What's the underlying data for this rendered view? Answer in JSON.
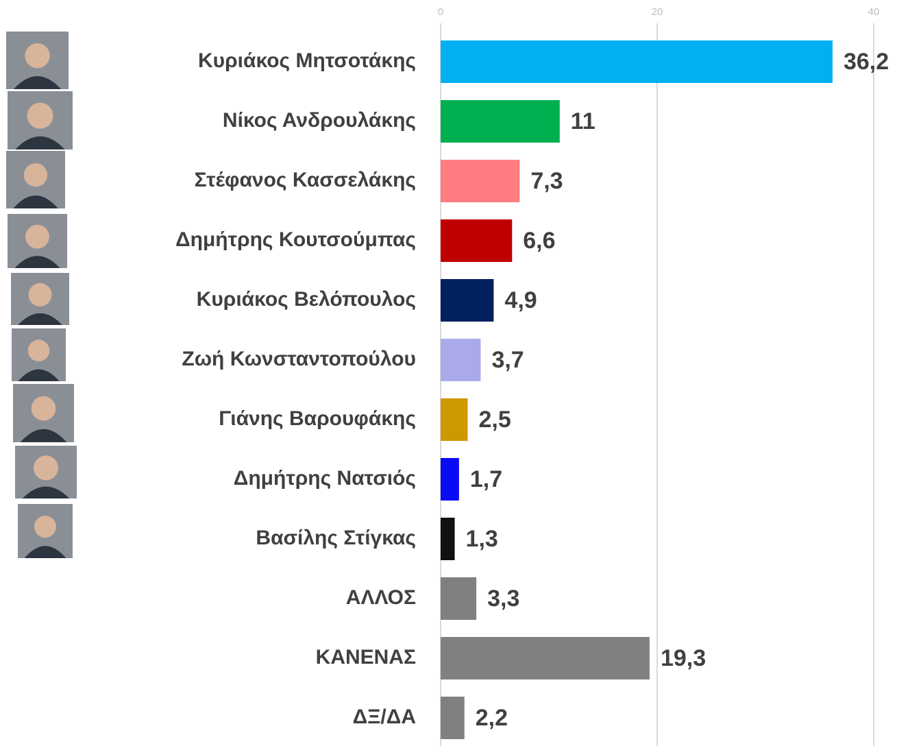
{
  "chart_data": {
    "type": "hbar",
    "categories": [
      "Κυριάκος Μητσοτάκης",
      "Νίκος Ανδρουλάκης",
      "Στέφανος Κασσελάκης",
      "Δημήτρης Κουτσούμπας",
      "Κυριάκος Βελόπουλος",
      "Ζωή Κωνσταντοπούλου",
      "Γιάνης Βαρουφάκης",
      "Δημήτρης Νατσιός",
      "Βασίλης Στίγκας",
      "ΑΛΛΟΣ",
      "ΚΑΝΕΝΑΣ",
      "ΔΞ/ΔΑ"
    ],
    "values": [
      36.2,
      11,
      7.3,
      6.6,
      4.9,
      3.7,
      2.5,
      1.7,
      1.3,
      3.3,
      19.3,
      2.2
    ],
    "value_labels": [
      "36,2",
      "11",
      "7,3",
      "6,6",
      "4,9",
      "3,7",
      "2,5",
      "1,7",
      "1,3",
      "3,3",
      "19,3",
      "2,2"
    ],
    "colors": [
      "#00b0f0",
      "#00b050",
      "#ff7c80",
      "#c00000",
      "#002060",
      "#aaaaea",
      "#cc9900",
      "#0a0af5",
      "#111111",
      "#808080",
      "#808080",
      "#808080"
    ],
    "xlim": [
      0,
      40
    ],
    "xticks": [
      0,
      20,
      40
    ],
    "grid": true
  }
}
